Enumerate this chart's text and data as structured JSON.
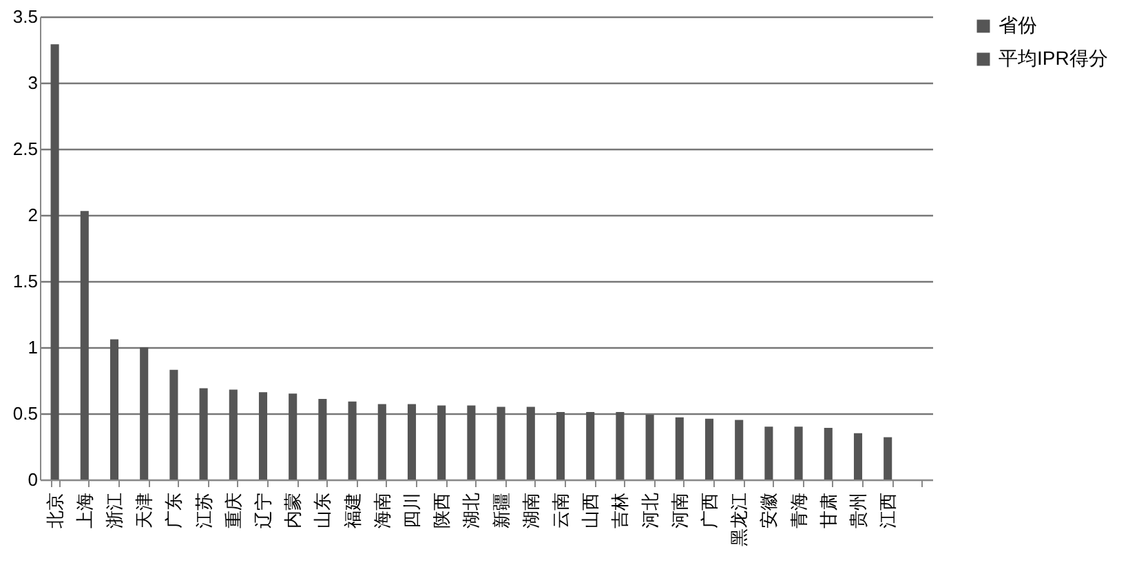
{
  "chart_data": {
    "type": "bar",
    "categories": [
      "北京",
      "上海",
      "浙江",
      "天津",
      "广东",
      "江苏",
      "重庆",
      "辽宁",
      "内蒙",
      "山东",
      "福建",
      "海南",
      "四川",
      "陕西",
      "湖北",
      "新疆",
      "湖南",
      "云南",
      "山西",
      "吉林",
      "河北",
      "河南",
      "广西",
      "黑龙江",
      "安徽",
      "青海",
      "甘肃",
      "贵州",
      "江西",
      null
    ],
    "series": [
      {
        "name": "省份",
        "color": "#555555",
        "values": [
          null,
          null,
          null,
          null,
          null,
          null,
          null,
          null,
          null,
          null,
          null,
          null,
          null,
          null,
          null,
          null,
          null,
          null,
          null,
          null,
          null,
          null,
          null,
          null,
          null,
          null,
          null,
          null,
          null,
          null
        ]
      },
      {
        "name": "平均IPR得分",
        "color": "#555555",
        "values": [
          3.29,
          2.03,
          1.06,
          1.0,
          0.83,
          0.69,
          0.68,
          0.66,
          0.65,
          0.61,
          0.59,
          0.57,
          0.57,
          0.56,
          0.56,
          0.55,
          0.55,
          0.51,
          0.51,
          0.51,
          0.49,
          0.47,
          0.46,
          0.45,
          0.4,
          0.4,
          0.39,
          0.35,
          0.32,
          null
        ]
      }
    ],
    "ylim": [
      0,
      3.5
    ],
    "yticks": [
      0,
      0.5,
      1,
      1.5,
      2,
      2.5,
      3,
      3.5
    ],
    "grid": "y",
    "legend": "right"
  }
}
